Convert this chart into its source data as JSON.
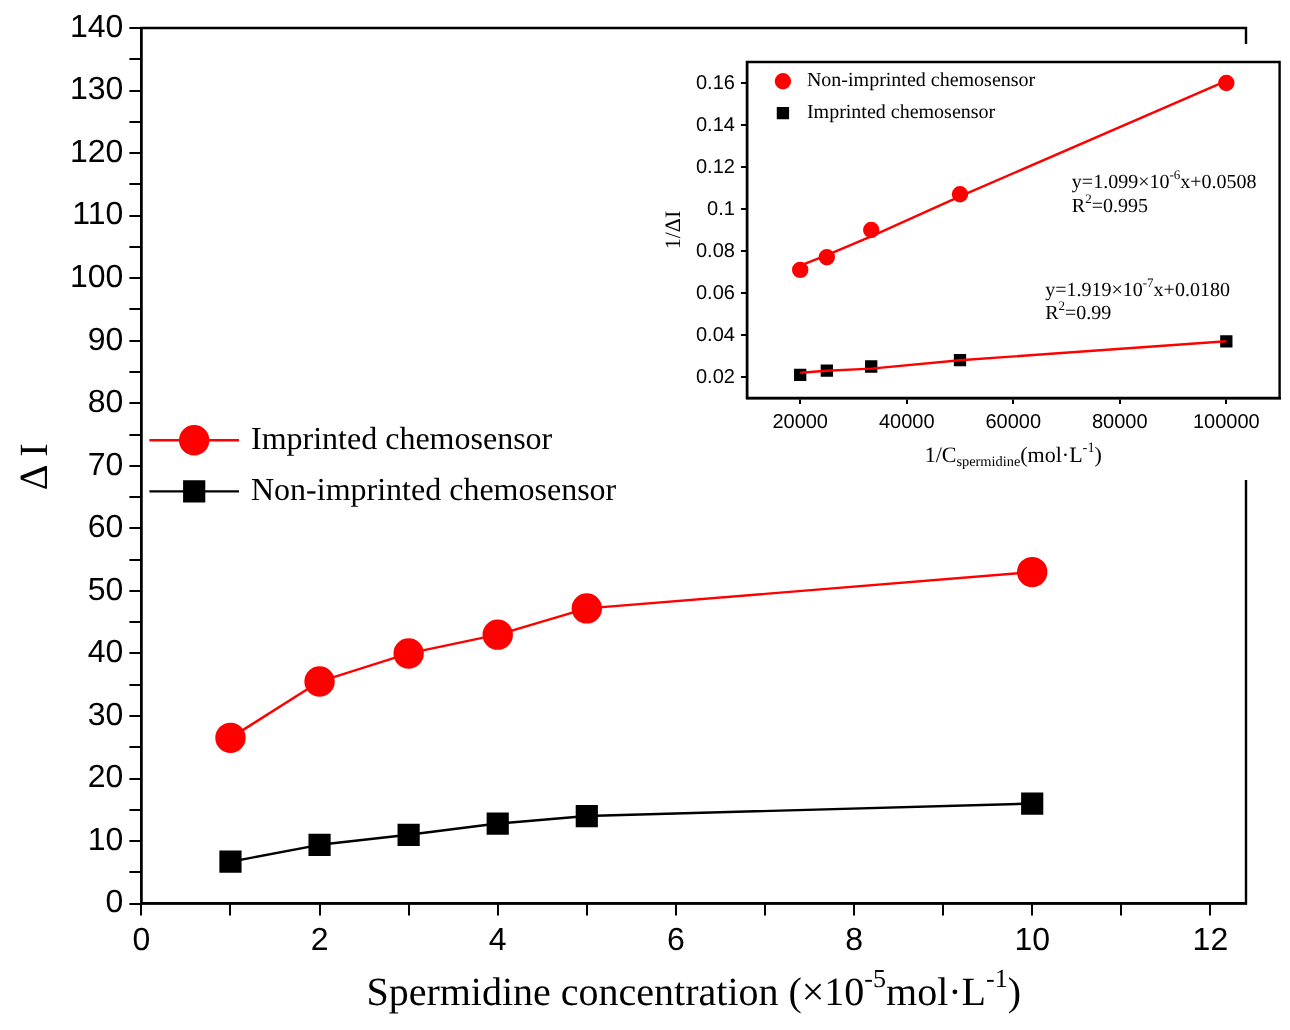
{
  "chart_data": [
    {
      "type": "line",
      "xlabel": "Spermidine concentration (×10$^{-5}$mol·L$^{-1}$)",
      "ylabel": "Δ I",
      "xlim": [
        0,
        12.4
      ],
      "xticks": [
        0,
        {
          "value": 1,
          "label": null
        },
        2,
        {
          "value": 3,
          "label": null
        },
        4,
        {
          "value": 5,
          "label": null
        },
        6,
        {
          "value": 7,
          "label": null
        },
        8,
        {
          "value": 9,
          "label": null
        },
        10,
        {
          "value": 11,
          "label": null
        },
        12
      ],
      "ylim": [
        0,
        140
      ],
      "yticks": [
        0,
        {
          "value": 5,
          "label": null
        },
        10,
        {
          "value": 15,
          "label": null
        },
        20,
        {
          "value": 25,
          "label": null
        },
        30,
        {
          "value": 35,
          "label": null
        },
        40,
        {
          "value": 45,
          "label": null
        },
        50,
        {
          "value": 55,
          "label": null
        },
        60,
        {
          "value": 65,
          "label": null
        },
        70,
        {
          "value": 75,
          "label": null
        },
        80,
        {
          "value": 85,
          "label": null
        },
        90,
        {
          "value": 95,
          "label": null
        },
        100,
        {
          "value": 105,
          "label": null
        },
        110,
        {
          "value": 115,
          "label": null
        },
        120,
        {
          "value": 125,
          "label": null
        },
        130,
        {
          "value": 135,
          "label": null
        },
        140
      ],
      "x": [
        1,
        2,
        3,
        4,
        5,
        10
      ],
      "series": [
        {
          "name": "Imprinted chemosensor",
          "color": "#ff0000",
          "marker": "circle",
          "values": [
            26.5,
            35.5,
            40,
            43,
            47.2,
            53
          ]
        },
        {
          "name": "Non-imprinted chemosensor",
          "color": "#000000",
          "marker": "square",
          "values": [
            6.7,
            9.4,
            11,
            12.8,
            14,
            16
          ]
        }
      ],
      "legend": "left",
      "grid": false
    },
    {
      "type": "scatter",
      "xlabel": "1/C$_{spermidine}$(mol·L$^{-1}$)",
      "ylabel": "1/ΔI",
      "xlim": [
        10000,
        110000
      ],
      "xticks": [
        20000,
        40000,
        60000,
        80000,
        100000
      ],
      "ylim": [
        0.01,
        0.17
      ],
      "yticks": [
        0.02,
        0.04,
        0.06,
        0.08,
        0.1,
        0.12,
        0.14,
        0.16
      ],
      "x": [
        20000,
        25000,
        33333,
        50000,
        100000
      ],
      "series": [
        {
          "name": "Non-imprinted chemosensor",
          "color": "#ff0000",
          "marker": "circle",
          "values": [
            0.071,
            0.077,
            0.09,
            0.107,
            0.16
          ]
        },
        {
          "name": "Imprinted chemosensor",
          "color": "#000000",
          "marker": "square",
          "values": [
            0.021,
            0.023,
            0.025,
            0.028,
            0.037
          ]
        },
        {
          "type": "line",
          "color": "#ff0000",
          "marker": "none",
          "values": [
            0.073,
            0.078,
            0.087,
            0.106,
            0.161
          ]
        },
        {
          "type": "line",
          "color": "#ff0000",
          "marker": "none",
          "values": [
            0.022,
            0.023,
            0.024,
            0.028,
            0.037
          ]
        }
      ],
      "annotations": [
        "y=1.099×10$^{-6}$x+0.0508",
        "R$^{2}$=0.995",
        "y=1.919×10$^{-7}$x+0.0180",
        "R$^{2}$=0.99"
      ],
      "legend": "top left",
      "grid": false
    }
  ]
}
